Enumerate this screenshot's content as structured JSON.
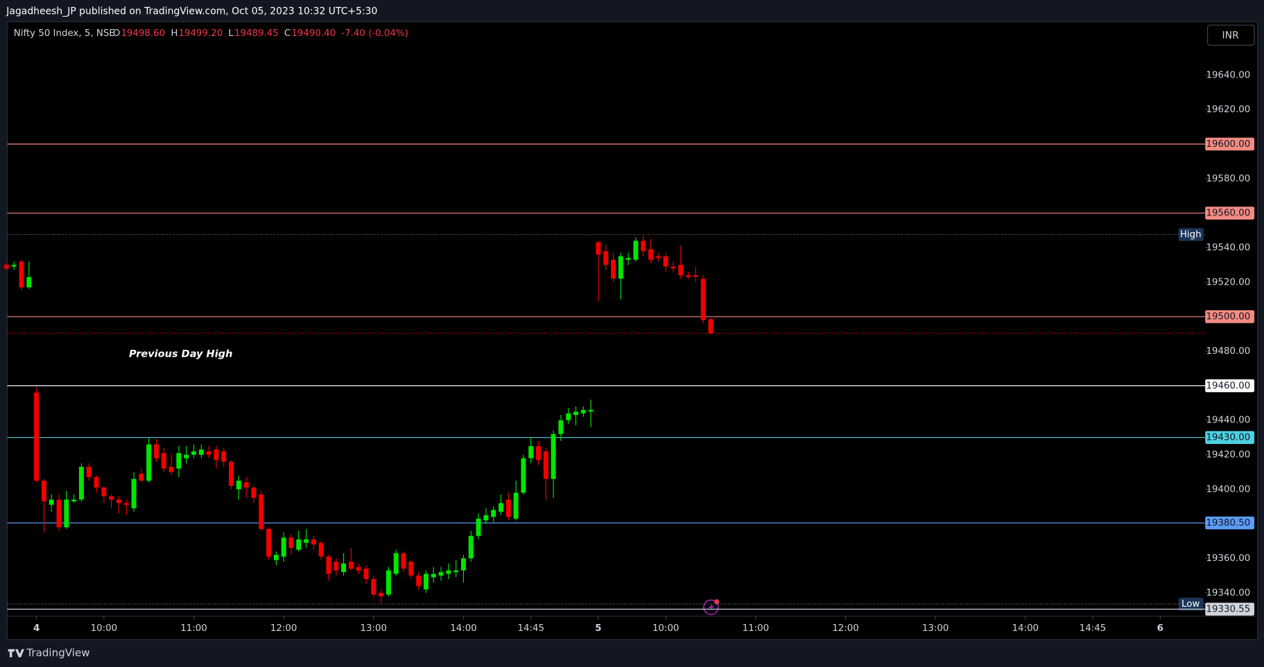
{
  "header": {
    "publisher": "Jagadheesh_JP published on TradingView.com, Oct 05, 2023 10:32 UTC+5:30"
  },
  "currency_button": "INR",
  "footer": {
    "brand": "TradingView"
  },
  "chart_data": {
    "type": "candlestick",
    "title": "Nifty 50 Index, 5, NSE",
    "ohlc_legend": [
      {
        "key": "O",
        "value": "19498.60"
      },
      {
        "key": "H",
        "value": "19499.20"
      },
      {
        "key": "L",
        "value": "19489.45"
      },
      {
        "key": "C",
        "value": "19490.40"
      }
    ],
    "change": "-7.40 (-0.04%)",
    "annotation": "Previous Day High",
    "up_color": "#00e600",
    "down_color": "#f20000",
    "candles": {
      "open": [
        19530,
        19529,
        19532,
        19517,
        19456,
        19405,
        19391,
        19394,
        19378,
        19393,
        19394,
        19413,
        19407,
        19401,
        19396,
        19394,
        19392,
        19389,
        19409,
        19405,
        19426,
        19421,
        19413,
        19412,
        19418,
        19420,
        19420,
        19422,
        19423,
        19422,
        19416,
        19400,
        19404,
        19401,
        19397,
        19377,
        19359,
        19361,
        19372,
        19365,
        19369,
        19371,
        19369,
        19361,
        19358,
        19352,
        19358,
        19355,
        19354,
        19348,
        19340,
        19339,
        19351,
        19363,
        19358,
        19350,
        19342,
        19349,
        19350,
        19351,
        19352,
        19353,
        19360,
        19373,
        19382,
        19384,
        19387,
        19394,
        19383,
        19398,
        19418,
        19425,
        19422,
        19406,
        19432,
        19440,
        19443,
        19444,
        19445,
        19543,
        19538,
        19533,
        19522,
        19533,
        19533,
        19544,
        19539,
        19535,
        19535,
        19529,
        19530,
        19524,
        19524,
        19522,
        19498.6
      ],
      "high": [
        19531,
        19532,
        19533,
        19532,
        19459,
        19406,
        19397,
        19397,
        19399,
        19397,
        19415,
        19415,
        19408,
        19402,
        19397,
        19396,
        19394,
        19410,
        19412,
        19430,
        19429,
        19424,
        19420,
        19425,
        19425,
        19426,
        19426,
        19425,
        19425,
        19424,
        19417,
        19408,
        19407,
        19402,
        19399,
        19378,
        19364,
        19375,
        19374,
        19376,
        19377,
        19373,
        19370,
        19362,
        19360,
        19363,
        19366,
        19357,
        19356,
        19350,
        19342,
        19355,
        19365,
        19364,
        19359,
        19352,
        19353,
        19355,
        19355,
        19357,
        19359,
        19362,
        19376,
        19386,
        19389,
        19390,
        19397,
        19398,
        19405,
        19420,
        19430,
        19428,
        19424,
        19434,
        19443,
        19447,
        19448,
        19448,
        19452,
        19544,
        19542,
        19537,
        19537,
        19537,
        19546,
        19547,
        19545,
        19537,
        19537,
        19532,
        19541,
        19526,
        19529,
        19524,
        19499.2
      ],
      "low": [
        19527,
        19527,
        19515,
        19516,
        19404,
        19375,
        19387,
        19376,
        19377,
        19392,
        19393,
        19405,
        19398,
        19392,
        19389,
        19386,
        19385,
        19387,
        19404,
        19404,
        19416,
        19410,
        19408,
        19407,
        19415,
        19418,
        19418,
        19418,
        19412,
        19413,
        19400,
        19394,
        19395,
        19392,
        19376,
        19359,
        19356,
        19358,
        19362,
        19364,
        19366,
        19365,
        19359,
        19347,
        19350,
        19350,
        19353,
        19351,
        19345,
        19337,
        19334,
        19338,
        19350,
        19352,
        19348,
        19342,
        19340,
        19346,
        19347,
        19348,
        19349,
        19346,
        19358,
        19371,
        19380,
        19381,
        19385,
        19382,
        19382,
        19397,
        19415,
        19414,
        19394,
        19395,
        19428,
        19438,
        19437,
        19442,
        19436,
        19509,
        19527,
        19520,
        19510,
        19530,
        19532,
        19535,
        19531,
        19532,
        19526,
        19526,
        19522,
        19522,
        19520,
        19496,
        19489.45
      ],
      "close": [
        19528,
        19530,
        19517,
        19523,
        19405,
        19393,
        19394,
        19378,
        19394,
        19394,
        19413,
        19407,
        19401,
        19396,
        19394,
        19392,
        19391,
        19406,
        19405,
        19426,
        19418,
        19412,
        19410,
        19421,
        19420,
        19422,
        19423,
        19420,
        19417,
        19416,
        19402,
        19405,
        19401,
        19395,
        19377,
        19361,
        19362,
        19372,
        19366,
        19371,
        19371,
        19368,
        19361,
        19351,
        19353,
        19357,
        19354,
        19353,
        19348,
        19339,
        19338,
        19353,
        19363,
        19354,
        19350,
        19344,
        19351,
        19351,
        19352,
        19353,
        19353,
        19360,
        19373,
        19383,
        19385,
        19388,
        19392,
        19384,
        19398,
        19418,
        19425,
        19417,
        19406,
        19432,
        19440,
        19444,
        19445,
        19446,
        19446,
        19536,
        19530,
        19522,
        19535,
        19534,
        19544,
        19538,
        19533,
        19534,
        19529,
        19528,
        19524,
        19523,
        19523,
        19498,
        19490.4
      ]
    },
    "price_lines": [
      {
        "value": 19600,
        "label": "19600.00",
        "color": "#f28b82"
      },
      {
        "value": 19560,
        "label": "19560.00",
        "color": "#f28b82"
      },
      {
        "value": 19500,
        "label": "19500.00",
        "color": "#f28b82"
      },
      {
        "value": 19460,
        "label": "19460.00",
        "color": "#ffffff"
      },
      {
        "value": 19430,
        "label": "19430.00",
        "color": "#4dd0e1"
      },
      {
        "value": 19380.5,
        "label": "19380.50",
        "color": "#5b9cf6"
      },
      {
        "value": 19330.55,
        "label": "19330.55",
        "color": "#d1d4dc"
      }
    ],
    "range_lines": [
      {
        "value": 19547.6,
        "label": "High"
      },
      {
        "value": 19333.5,
        "label": "Low"
      }
    ],
    "xlim": [
      0.1,
      160
    ],
    "ylim": [
      19326.5,
      19670.8
    ],
    "xticks": [
      {
        "value": 4,
        "label": "4"
      },
      {
        "value": 13,
        "label": "10:00"
      },
      {
        "value": 25,
        "label": "11:00"
      },
      {
        "value": 37,
        "label": "12:00"
      },
      {
        "value": 49,
        "label": "13:00"
      },
      {
        "value": 61,
        "label": "14:00"
      },
      {
        "value": 70,
        "label": "14:45"
      },
      {
        "value": 79,
        "label": "5"
      },
      {
        "value": 88,
        "label": "10:00"
      },
      {
        "value": 100,
        "label": "11:00"
      },
      {
        "value": 112,
        "label": "12:00"
      },
      {
        "value": 124,
        "label": "13:00"
      },
      {
        "value": 136,
        "label": "14:00"
      },
      {
        "value": 145,
        "label": "14:45"
      },
      {
        "value": 154,
        "label": "6"
      }
    ],
    "yticks": [
      {
        "value": 19640,
        "label": "19640.00"
      },
      {
        "value": 19620,
        "label": "19620.00"
      },
      {
        "value": 19580,
        "label": "19580.00"
      },
      {
        "value": 19540,
        "label": "19540.00"
      },
      {
        "value": 19520,
        "label": "19520.00"
      },
      {
        "value": 19480,
        "label": "19480.00"
      },
      {
        "value": 19440,
        "label": "19440.00"
      },
      {
        "value": 19420,
        "label": "19420.00"
      },
      {
        "value": 19400,
        "label": "19400.00"
      },
      {
        "value": 19360,
        "label": "19360.00"
      },
      {
        "value": 19340,
        "label": "19340.00"
      }
    ]
  }
}
